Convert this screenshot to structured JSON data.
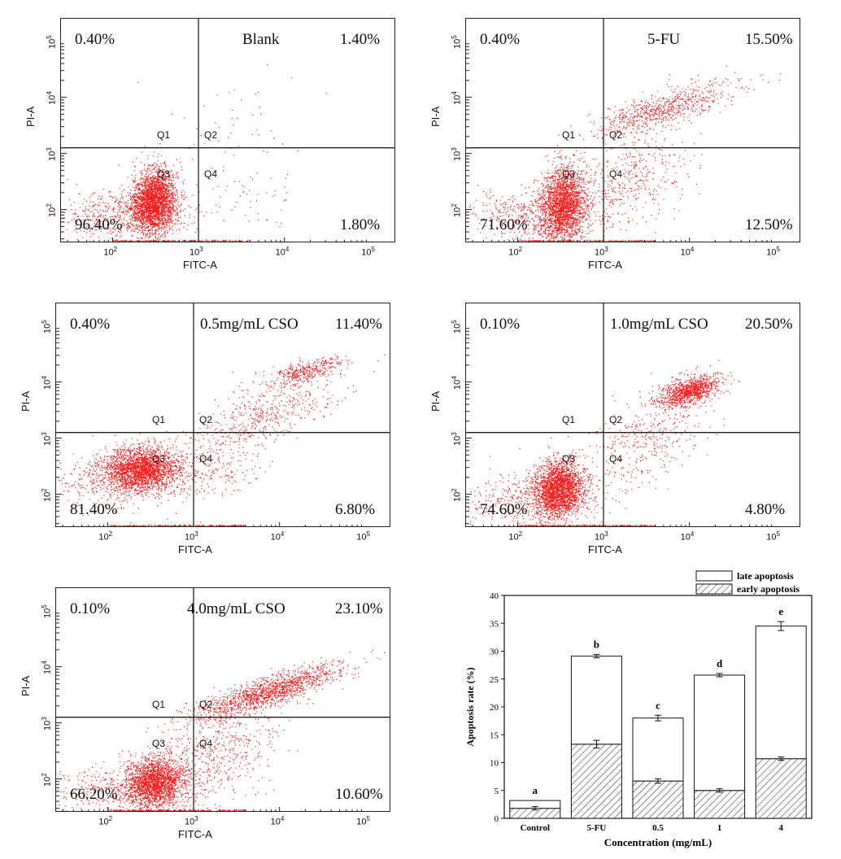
{
  "chart_data": [
    {
      "type": "scatter",
      "title": "Blank",
      "xlabel": "FITC-A",
      "ylabel": "PI-A",
      "x_ticks": [
        "10^2",
        "10^3",
        "10^4",
        "10^5"
      ],
      "y_ticks": [
        "10^2",
        "10^3",
        "10^4",
        "10^5"
      ],
      "quadrant_labels": [
        "Q1",
        "Q2",
        "Q3",
        "Q4"
      ],
      "quadrants": {
        "Q1": "0.40%",
        "Q2": "1.40%",
        "Q3": "96.40%",
        "Q4": "1.80%"
      },
      "gate_log": {
        "x": 3.0,
        "y": 3.1
      }
    },
    {
      "type": "scatter",
      "title": "5-FU",
      "xlabel": "FITC-A",
      "ylabel": "PI-A",
      "x_ticks": [
        "10^2",
        "10^3",
        "10^4",
        "10^5"
      ],
      "y_ticks": [
        "10^2",
        "10^3",
        "10^4",
        "10^5"
      ],
      "quadrant_labels": [
        "Q1",
        "Q2",
        "Q3",
        "Q4"
      ],
      "quadrants": {
        "Q1": "0.40%",
        "Q2": "15.50%",
        "Q3": "71.60%",
        "Q4": "12.50%"
      },
      "gate_log": {
        "x": 3.0,
        "y": 3.1
      }
    },
    {
      "type": "scatter",
      "title": "0.5mg/mL CSO",
      "xlabel": "FITC-A",
      "ylabel": "PI-A",
      "x_ticks": [
        "10^2",
        "10^3",
        "10^4",
        "10^5"
      ],
      "y_ticks": [
        "10^2",
        "10^3",
        "10^4",
        "10^5"
      ],
      "quadrant_labels": [
        "Q1",
        "Q2",
        "Q3",
        "Q4"
      ],
      "quadrants": {
        "Q1": "0.40%",
        "Q2": "11.40%",
        "Q3": "81.40%",
        "Q4": "6.80%"
      },
      "gate_log": {
        "x": 3.0,
        "y": 3.1
      }
    },
    {
      "type": "scatter",
      "title": "1.0mg/mL CSO",
      "xlabel": "FITC-A",
      "ylabel": "PI-A",
      "x_ticks": [
        "10^2",
        "10^3",
        "10^4",
        "10^5"
      ],
      "y_ticks": [
        "10^2",
        "10^3",
        "10^4",
        "10^5"
      ],
      "quadrant_labels": [
        "Q1",
        "Q2",
        "Q3",
        "Q4"
      ],
      "quadrants": {
        "Q1": "0.10%",
        "Q2": "20.50%",
        "Q3": "74.60%",
        "Q4": "4.80%"
      },
      "gate_log": {
        "x": 3.0,
        "y": 3.1
      }
    },
    {
      "type": "scatter",
      "title": "4.0mg/mL CSO",
      "xlabel": "FITC-A",
      "ylabel": "PI-A",
      "x_ticks": [
        "10^2",
        "10^3",
        "10^4",
        "10^5"
      ],
      "y_ticks": [
        "10^2",
        "10^3",
        "10^4",
        "10^5"
      ],
      "quadrant_labels": [
        "Q1",
        "Q2",
        "Q3",
        "Q4"
      ],
      "quadrants": {
        "Q1": "0.10%",
        "Q2": "23.10%",
        "Q3": "66.20%",
        "Q4": "10.60%"
      },
      "gate_log": {
        "x": 3.0,
        "y": 3.1
      }
    },
    {
      "type": "bar",
      "stacked": true,
      "categories": [
        "Control",
        "5-FU",
        "0.5",
        "1",
        "4"
      ],
      "series": [
        {
          "name": "early apoptosis",
          "values": [
            1.8,
            13.3,
            6.7,
            5.0,
            10.7
          ],
          "errors": [
            0.3,
            0.7,
            0.4,
            0.3,
            0.3
          ],
          "pattern": "hatched"
        },
        {
          "name": "late apoptosis",
          "values": [
            1.4,
            15.8,
            11.3,
            20.7,
            23.8
          ],
          "errors": [
            0,
            0.3,
            0.5,
            0.3,
            0.8
          ],
          "pattern": "white"
        }
      ],
      "significance_letters": [
        "a",
        "b",
        "c",
        "d",
        "e"
      ],
      "xlabel": "Concentration (mg/mL)",
      "ylabel": "Apoptosis rate (%)",
      "ylim": [
        0,
        40
      ],
      "yticks": [
        "0",
        "5",
        "10",
        "15",
        "20",
        "25",
        "30",
        "35",
        "40"
      ],
      "legend_position": "top-right"
    }
  ],
  "colors": {
    "dots": "#ff1a1a",
    "gate": "#222222",
    "axis": "#111111"
  }
}
